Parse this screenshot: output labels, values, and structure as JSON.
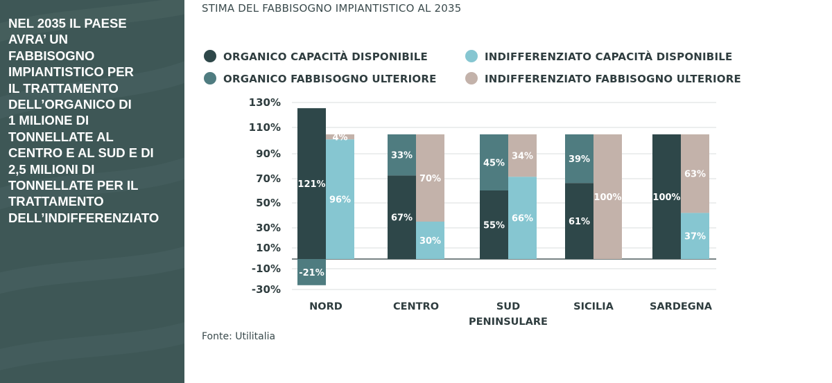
{
  "sidebar": {
    "lines": [
      "NEL 2035 IL PAESE",
      "AVRA’ UN",
      "FABBISOGNO",
      "IMPIANTISTICO PER",
      "IL TRATTAMENTO",
      "DELL’ORGANICO DI",
      "1 MILIONE DI",
      "TONNELLATE AL",
      "CENTRO E AL SUD E DI",
      "2,5 MILIONI DI",
      "TONNELLATE PER IL",
      "TRATTAMENTO",
      "DELL’INDIFFERENZIATO"
    ],
    "background_color": "#3e5756"
  },
  "source_note": "Fonte: Utilitalia",
  "chart_data": {
    "type": "bar",
    "title": "STIMA DEL FABBISOGNO IMPIANTISTICO AL 2035",
    "xlabel": "",
    "ylabel": "",
    "categories": [
      "NORD",
      "CENTRO",
      "SUD PENINSULARE",
      "SICILIA",
      "SARDEGNA"
    ],
    "category_lines": [
      [
        "NORD"
      ],
      [
        "CENTRO"
      ],
      [
        "SUD",
        "PENINSULARE"
      ],
      [
        "SICILIA"
      ],
      [
        "SARDEGNA"
      ]
    ],
    "yticks": [
      "130%",
      "110%",
      "90%",
      "70%",
      "50%",
      "30%",
      "10%",
      "-10%",
      "-30%"
    ],
    "ylim": [
      -30,
      130
    ],
    "grid": true,
    "legend_position": "top",
    "series": [
      {
        "name": "ORGANICO CAPACITÀ DISPONIBILE",
        "color": "#2e4749",
        "stack": "organico",
        "values": [
          121,
          67,
          55,
          61,
          100
        ],
        "labels": [
          "121%",
          "67%",
          "55%",
          "61%",
          "100%"
        ]
      },
      {
        "name": "ORGANICO FABBISOGNO ULTERIORE",
        "color": "#4f7c80",
        "stack": "organico",
        "values": [
          -21,
          33,
          45,
          39,
          0
        ],
        "labels": [
          "-21%",
          "33%",
          "45%",
          "39%",
          ""
        ]
      },
      {
        "name": "INDIFFERENZIATO CAPACITÀ DISPONIBILE",
        "color": "#86c6d1",
        "stack": "indifferenziato",
        "values": [
          96,
          30,
          66,
          0,
          37
        ],
        "labels": [
          "96%",
          "30%",
          "66%",
          "",
          "37%"
        ]
      },
      {
        "name": "INDIFFERENZIATO FABBISOGNO ULTERIORE",
        "color": "#c3b2aa",
        "stack": "indifferenziato",
        "values": [
          4,
          70,
          34,
          100,
          63
        ],
        "labels": [
          "4%",
          "70%",
          "34%",
          "100%",
          "63%"
        ]
      }
    ]
  }
}
